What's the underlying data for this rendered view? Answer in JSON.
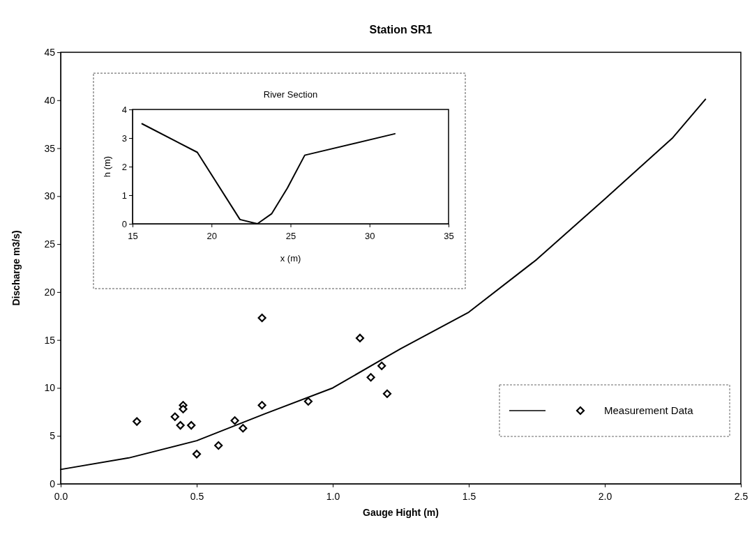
{
  "chart_data": [
    {
      "type": "scatter",
      "title": "Station SR1",
      "xlabel": "Gauge Hight (m)",
      "ylabel": "Discharge m3/s)",
      "xlim": [
        0,
        2.5
      ],
      "ylim": [
        0,
        45
      ],
      "xticks": [
        {
          "value": 0,
          "label": "0.0"
        },
        {
          "value": 0.5,
          "label": "0.5"
        },
        {
          "value": 1,
          "label": "1.0"
        },
        {
          "value": 1.5,
          "label": "1.5"
        },
        {
          "value": 2,
          "label": "2.0"
        },
        {
          "value": 2.5,
          "label": "2.5"
        }
      ],
      "yticks": [
        0,
        5,
        10,
        15,
        20,
        25,
        30,
        35,
        40,
        45
      ],
      "legend": "bottom right",
      "series": [
        {
          "type": "line",
          "color": "#000000",
          "marker": "none",
          "line_style": "solid",
          "x": [
            0,
            0.25,
            0.5,
            0.75,
            1,
            1.25,
            1.5,
            1.75,
            2,
            2.25,
            2.37
          ],
          "values": [
            1.5,
            2.7,
            4.5,
            7.3,
            10.0,
            14.1,
            17.9,
            23.4,
            29.7,
            36.1,
            40.1
          ]
        },
        {
          "name": "Measurement Data",
          "color": "#000000",
          "marker": "diamond",
          "x": [
            0.28,
            0.42,
            0.44,
            0.45,
            0.45,
            0.48,
            0.5,
            0.58,
            0.64,
            0.67,
            0.74,
            0.74,
            0.91,
            1.1,
            1.14,
            1.18,
            1.2
          ],
          "values": [
            6.5,
            7.0,
            6.1,
            8.2,
            7.8,
            6.1,
            3.1,
            4.0,
            6.6,
            5.8,
            17.3,
            8.2,
            8.6,
            15.2,
            11.1,
            12.3,
            9.4
          ]
        }
      ]
    },
    {
      "type": "line",
      "title": "River Section",
      "xlabel": "x (m)",
      "ylabel": "h (m)",
      "xlim": [
        15,
        35
      ],
      "ylim": [
        0,
        4
      ],
      "xticks": [
        15,
        20,
        25,
        30,
        35
      ],
      "yticks": [
        0,
        1,
        2,
        3,
        4
      ],
      "series": [
        {
          "color": "#000000",
          "marker": "none",
          "line_style": "solid",
          "x": [
            15.6,
            19.1,
            21.8,
            22.9,
            23.8,
            24.8,
            25.9,
            31.6
          ],
          "values": [
            3.5,
            2.5,
            0.15,
            0,
            0.35,
            1.25,
            2.4,
            3.15
          ]
        }
      ]
    }
  ]
}
